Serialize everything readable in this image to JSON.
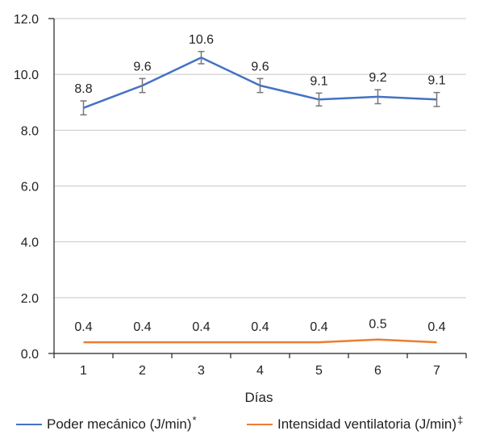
{
  "chart_data": {
    "type": "line",
    "xlabel": "Días",
    "ylabel": "",
    "categories": [
      "1",
      "2",
      "3",
      "4",
      "5",
      "6",
      "7"
    ],
    "ylim": [
      0,
      12
    ],
    "yticks": [
      "0.0",
      "2.0",
      "4.0",
      "6.0",
      "8.0",
      "10.0",
      "12.0"
    ],
    "grid": true,
    "legend_position": "bottom",
    "series": [
      {
        "name": "Poder mecánico (J/min)",
        "marker": "*",
        "color": "#4472C4",
        "values": [
          8.8,
          9.6,
          10.6,
          9.6,
          9.1,
          9.2,
          9.1
        ],
        "labels": [
          "8.8",
          "9.6",
          "10.6",
          "9.6",
          "9.1",
          "9.2",
          "9.1"
        ],
        "error": [
          0.25,
          0.25,
          0.22,
          0.25,
          0.23,
          0.25,
          0.25
        ]
      },
      {
        "name": "Intensidad ventilatoria (J/min)",
        "marker": "‡",
        "color": "#ED7D31",
        "values": [
          0.4,
          0.4,
          0.4,
          0.4,
          0.4,
          0.5,
          0.4
        ],
        "labels": [
          "0.4",
          "0.4",
          "0.4",
          "0.4",
          "0.4",
          "0.5",
          "0.4"
        ]
      }
    ]
  }
}
